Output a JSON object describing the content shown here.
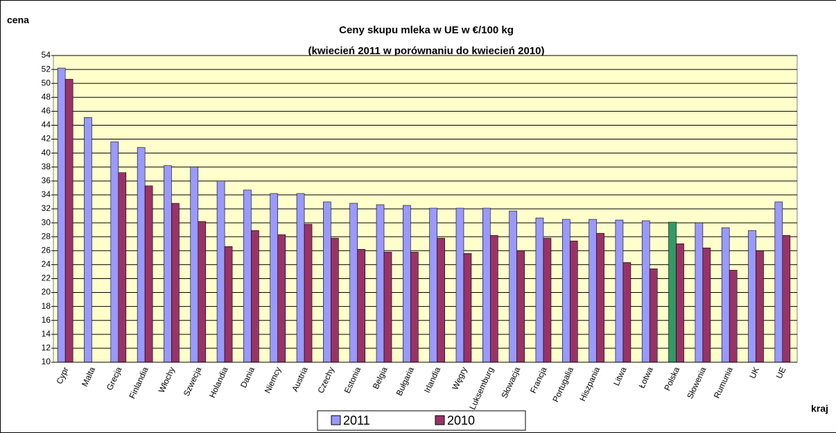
{
  "chart_data": {
    "type": "bar",
    "title": "Ceny skupu mleka w UE w €/100 kg",
    "subtitle": "(kwiecień 2011 w porównaniu do kwiecień 2010)",
    "y_label": "cena",
    "x_label": "kraj",
    "categories": [
      "Cypr",
      "Malta",
      "Grecja",
      "Finlandia",
      "Włochy",
      "Szwecja",
      "Holandia",
      "Dania",
      "Niemcy",
      "Austria",
      "Czechy",
      "Estonia",
      "Belgia",
      "Bułgaria",
      "Irlandia",
      "Węgry",
      "Luksemburg",
      "Słowacja",
      "Francja",
      "Portugalia",
      "Hiszpania",
      "Litwa",
      "Łotwa",
      "Polska",
      "Słowenia",
      "Rumunia",
      "UK",
      "UE"
    ],
    "series": [
      {
        "name": "2011",
        "color": "#9999ff",
        "colors": [
          "#9999ff",
          "#9999ff",
          "#9999ff",
          "#9999ff",
          "#9999ff",
          "#9999ff",
          "#9999ff",
          "#9999ff",
          "#9999ff",
          "#9999ff",
          "#9999ff",
          "#9999ff",
          "#9999ff",
          "#9999ff",
          "#9999ff",
          "#9999ff",
          "#9999ff",
          "#9999ff",
          "#9999ff",
          "#9999ff",
          "#9999ff",
          "#9999ff",
          "#9999ff",
          "#339966",
          "#9999ff",
          "#9999ff",
          "#9999ff",
          "#9999ff"
        ],
        "values": [
          52.2,
          45.1,
          41.6,
          40.8,
          38.2,
          38.0,
          36.0,
          34.7,
          34.2,
          34.2,
          33.0,
          32.8,
          32.6,
          32.5,
          32.1,
          32.1,
          32.1,
          31.7,
          30.7,
          30.5,
          30.5,
          30.4,
          30.3,
          30.1,
          30.0,
          29.3,
          28.9,
          33.0
        ]
      },
      {
        "name": "2010",
        "color": "#993366",
        "values": [
          50.6,
          null,
          37.2,
          35.3,
          32.8,
          30.2,
          26.6,
          28.9,
          28.3,
          29.8,
          27.8,
          26.2,
          25.8,
          25.8,
          27.8,
          25.6,
          28.2,
          26.0,
          27.8,
          27.4,
          28.5,
          24.3,
          23.4,
          27.0,
          26.4,
          23.2,
          26.0,
          28.2
        ]
      }
    ],
    "ylim": [
      10,
      54
    ],
    "yticks": [
      10,
      12,
      14,
      16,
      18,
      20,
      22,
      24,
      26,
      28,
      30,
      32,
      34,
      36,
      38,
      40,
      42,
      44,
      46,
      48,
      50,
      52,
      54
    ],
    "grid": true,
    "legend": "bottom",
    "background": "#ffffcc"
  }
}
